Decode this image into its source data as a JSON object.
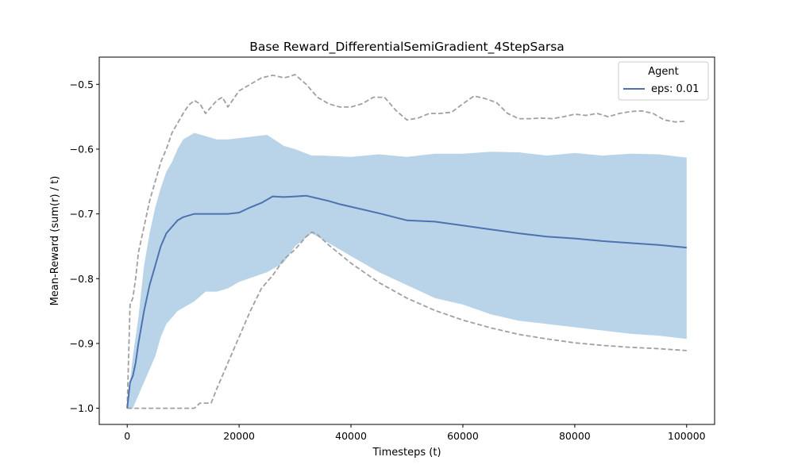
{
  "chart_data": {
    "type": "line",
    "title": "Base Reward_DifferentialSemiGradient_4StepSarsa",
    "xlabel": "Timesteps (t)",
    "ylabel": "Mean-Reward (sum(r) / t)",
    "xlim": [
      -5000,
      105000
    ],
    "ylim": [
      -1.025,
      -0.458
    ],
    "xticks": [
      0,
      20000,
      40000,
      60000,
      80000,
      100000
    ],
    "xtick_labels": [
      "0",
      "20000",
      "40000",
      "60000",
      "80000",
      "100000"
    ],
    "yticks": [
      -1.0,
      -0.9,
      -0.8,
      -0.7,
      -0.6,
      -0.5
    ],
    "ytick_labels": [
      "−1.0",
      "−0.9",
      "−0.8",
      "−0.7",
      "−0.6",
      "−0.5"
    ],
    "grid": false,
    "legend": {
      "title": "Agent",
      "placement": "top-right"
    },
    "colors": {
      "mean": "#4c72b0",
      "band": "#b9d4e8",
      "bounds": "#a0a0a0"
    },
    "series": [
      {
        "name": "eps: 0.01",
        "x": [
          0,
          500,
          1000,
          1500,
          2000,
          3000,
          4000,
          5000,
          6000,
          7000,
          8000,
          9000,
          10000,
          12000,
          14000,
          16000,
          18000,
          20000,
          22000,
          24000,
          26000,
          28000,
          30000,
          32000,
          34000,
          36000,
          38000,
          40000,
          45000,
          50000,
          55000,
          60000,
          65000,
          70000,
          75000,
          80000,
          85000,
          90000,
          95000,
          100000
        ],
        "y": [
          -1.0,
          -0.96,
          -0.95,
          -0.93,
          -0.9,
          -0.85,
          -0.81,
          -0.78,
          -0.75,
          -0.73,
          -0.72,
          -0.71,
          -0.705,
          -0.7,
          -0.7,
          -0.7,
          -0.7,
          -0.698,
          -0.69,
          -0.683,
          -0.673,
          -0.674,
          -0.673,
          -0.672,
          -0.676,
          -0.68,
          -0.685,
          -0.689,
          -0.699,
          -0.71,
          -0.712,
          -0.718,
          -0.724,
          -0.73,
          -0.735,
          -0.738,
          -0.742,
          -0.745,
          -0.748,
          -0.752
        ]
      }
    ],
    "band": {
      "x": [
        0,
        1000,
        2000,
        3000,
        4000,
        5000,
        6000,
        7000,
        8000,
        9000,
        10000,
        12000,
        14000,
        16000,
        18000,
        20000,
        25000,
        28000,
        30000,
        33000,
        35000,
        40000,
        45000,
        50000,
        55000,
        60000,
        65000,
        70000,
        75000,
        80000,
        85000,
        90000,
        95000,
        100000
      ],
      "upper": [
        -1.0,
        -0.92,
        -0.86,
        -0.78,
        -0.73,
        -0.69,
        -0.66,
        -0.635,
        -0.62,
        -0.6,
        -0.585,
        -0.575,
        -0.58,
        -0.585,
        -0.585,
        -0.583,
        -0.578,
        -0.595,
        -0.6,
        -0.61,
        -0.61,
        -0.612,
        -0.608,
        -0.612,
        -0.607,
        -0.607,
        -0.604,
        -0.605,
        -0.61,
        -0.606,
        -0.61,
        -0.607,
        -0.608,
        -0.613
      ],
      "lower": [
        -1.0,
        -1.0,
        -0.98,
        -0.96,
        -0.94,
        -0.92,
        -0.89,
        -0.87,
        -0.86,
        -0.85,
        -0.845,
        -0.835,
        -0.82,
        -0.82,
        -0.815,
        -0.805,
        -0.79,
        -0.775,
        -0.75,
        -0.73,
        -0.74,
        -0.765,
        -0.79,
        -0.81,
        -0.83,
        -0.84,
        -0.855,
        -0.865,
        -0.87,
        -0.875,
        -0.88,
        -0.885,
        -0.888,
        -0.893
      ]
    },
    "bounds": [
      {
        "x": [
          0,
          500,
          1000,
          1500,
          2000,
          2500,
          3000,
          3500,
          4000,
          5000,
          6000,
          7000,
          8000,
          9000,
          10000,
          11000,
          12000,
          13000,
          14000,
          15000,
          16000,
          17000,
          18000,
          20000,
          22000,
          23000,
          24000,
          25000,
          26000,
          27000,
          28000,
          29000,
          30000,
          32000,
          34000,
          36000,
          38000,
          40000,
          42000,
          44000,
          46000,
          48000,
          50000,
          52000,
          54000,
          56000,
          58000,
          60000,
          62000,
          64000,
          66000,
          68000,
          70000,
          72000,
          74000,
          76000,
          78000,
          80000,
          82000,
          84000,
          86000,
          88000,
          90000,
          92000,
          94000,
          96000,
          98000,
          100000
        ],
        "y": [
          -1.0,
          -0.84,
          -0.83,
          -0.8,
          -0.76,
          -0.74,
          -0.72,
          -0.7,
          -0.68,
          -0.65,
          -0.62,
          -0.6,
          -0.575,
          -0.56,
          -0.545,
          -0.532,
          -0.525,
          -0.53,
          -0.545,
          -0.535,
          -0.525,
          -0.52,
          -0.535,
          -0.51,
          -0.5,
          -0.495,
          -0.49,
          -0.488,
          -0.486,
          -0.488,
          -0.49,
          -0.488,
          -0.485,
          -0.5,
          -0.52,
          -0.53,
          -0.535,
          -0.535,
          -0.53,
          -0.52,
          -0.52,
          -0.54,
          -0.555,
          -0.552,
          -0.545,
          -0.545,
          -0.543,
          -0.53,
          -0.518,
          -0.522,
          -0.528,
          -0.545,
          -0.553,
          -0.553,
          -0.552,
          -0.553,
          -0.55,
          -0.546,
          -0.548,
          -0.545,
          -0.55,
          -0.545,
          -0.542,
          -0.541,
          -0.545,
          -0.555,
          -0.558,
          -0.557
        ]
      },
      {
        "x": [
          0,
          12000,
          13000,
          14000,
          15000,
          16000,
          17000,
          18000,
          20000,
          22000,
          24000,
          26000,
          28000,
          30000,
          32000,
          33000,
          34000,
          36000,
          38000,
          40000,
          45000,
          50000,
          55000,
          60000,
          65000,
          70000,
          75000,
          80000,
          85000,
          90000,
          95000,
          100000
        ],
        "y": [
          -1.0,
          -1.0,
          -0.992,
          -0.992,
          -0.992,
          -0.97,
          -0.95,
          -0.93,
          -0.89,
          -0.85,
          -0.815,
          -0.795,
          -0.77,
          -0.755,
          -0.735,
          -0.728,
          -0.732,
          -0.748,
          -0.762,
          -0.776,
          -0.806,
          -0.83,
          -0.849,
          -0.864,
          -0.876,
          -0.886,
          -0.893,
          -0.899,
          -0.903,
          -0.906,
          -0.908,
          -0.911
        ]
      }
    ]
  }
}
